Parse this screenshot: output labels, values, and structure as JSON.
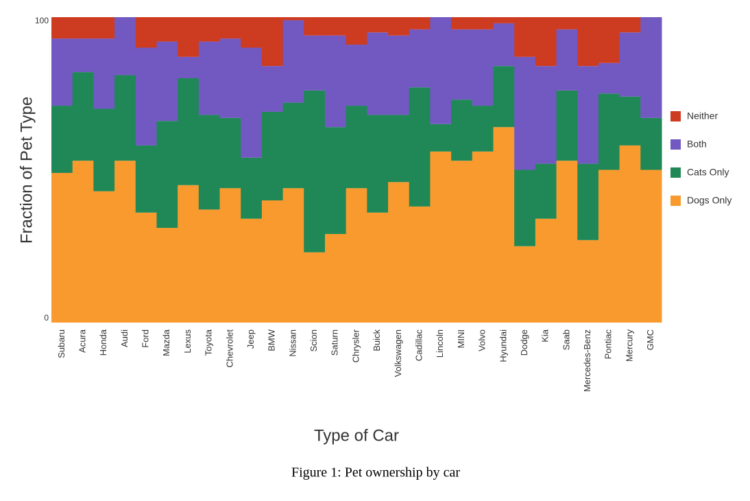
{
  "chart_data": {
    "type": "stacked_bar",
    "xlabel": "Type of Car",
    "ylabel": "Fraction of Pet Type",
    "categories": [
      "Subaru",
      "Acura",
      "Honda",
      "Audi",
      "Ford",
      "Mazda",
      "Lexus",
      "Toyota",
      "Chevrolet",
      "Jeep",
      "BMW",
      "Nissan",
      "Scion",
      "Saturn",
      "Chrysler",
      "Buick",
      "Volkswagen",
      "Cadillac",
      "Lincoln",
      "MINI",
      "Volvo",
      "Hyundai",
      "Dodge",
      "Kia",
      "Saab",
      "Mercedes-Benz",
      "Pontiac",
      "Mercury",
      "GMC"
    ],
    "series": [
      {
        "name": "Dogs Only",
        "color": "#f89a2e",
        "values": [
          49,
          53,
          43,
          53,
          36,
          31,
          45,
          37,
          44,
          34,
          40,
          44,
          23,
          29,
          44,
          36,
          46,
          38,
          56,
          53,
          56,
          64,
          25,
          34,
          53,
          27,
          50,
          58,
          50
        ]
      },
      {
        "name": "Cats Only",
        "color": "#1f8856",
        "values": [
          22,
          29,
          27,
          28,
          22,
          35,
          35,
          31,
          23,
          20,
          29,
          28,
          53,
          35,
          27,
          32,
          22,
          39,
          9,
          20,
          15,
          20,
          25,
          18,
          23,
          25,
          25,
          16,
          17
        ]
      },
      {
        "name": "Both",
        "color": "#7159c1",
        "values": [
          22,
          11,
          23,
          19,
          32,
          26,
          7,
          24,
          26,
          36,
          15,
          27,
          18,
          30,
          20,
          27,
          26,
          19,
          35,
          23,
          25,
          14,
          37,
          32,
          20,
          32,
          10,
          21,
          33
        ]
      },
      {
        "name": "Neither",
        "color": "#cd3b20",
        "values": [
          7,
          7,
          7,
          0,
          10,
          8,
          13,
          8,
          7,
          10,
          16,
          1,
          6,
          6,
          9,
          5,
          6,
          4,
          0,
          4,
          4,
          2,
          13,
          16,
          4,
          16,
          15,
          5,
          0
        ]
      }
    ],
    "ylim": [
      0,
      100
    ],
    "yticks": [
      0,
      100
    ],
    "grid": false,
    "legend": "right"
  },
  "caption": "Figure 1: Pet ownership by car"
}
